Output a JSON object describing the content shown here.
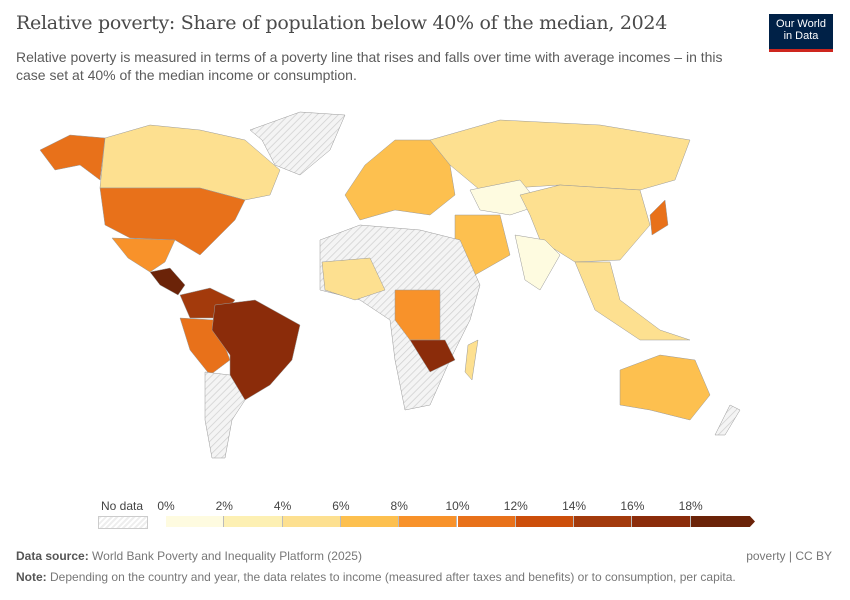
{
  "title": "Relative poverty: Share of population below 40% of the median, 2024",
  "subtitle": "Relative poverty is measured in terms of a poverty line that rises and falls over time with average incomes – in this case set at 40% of the median income or consumption.",
  "logo": {
    "line1": "Our World",
    "line2": "in Data"
  },
  "legend": {
    "no_data": "No data",
    "ticks": [
      "0%",
      "2%",
      "4%",
      "6%",
      "8%",
      "10%",
      "12%",
      "14%",
      "16%",
      "18%"
    ],
    "colors": [
      "#fefbe0",
      "#fdf0b3",
      "#fde090",
      "#fdc04f",
      "#f8922a",
      "#e8711a",
      "#cc4e0a",
      "#a33a0c",
      "#8b2c0a",
      "#6b2308"
    ]
  },
  "footer": {
    "source_label": "Data source:",
    "source": "World Bank Poverty and Inequality Platform (2025)",
    "license": "poverty | CC BY",
    "note_label": "Note:",
    "note": "Depending on the country and year, the data relates to income (measured after taxes and benefits) or to consumption, per capita."
  }
}
